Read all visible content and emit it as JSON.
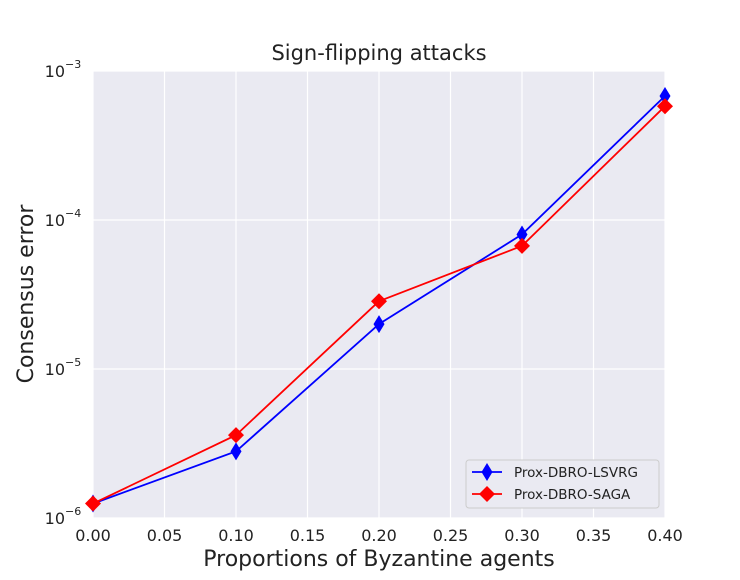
{
  "chart_data": {
    "type": "line",
    "title": "Sign-flipping attacks",
    "xlabel": "Proportions of Byzantine agents",
    "ylabel": "Consensus error",
    "x": [
      0.0,
      0.1,
      0.2,
      0.3,
      0.4
    ],
    "xlim": [
      0.0,
      0.4
    ],
    "xticks": [
      "0.00",
      "0.05",
      "0.10",
      "0.15",
      "0.20",
      "0.25",
      "0.30",
      "0.35",
      "0.40"
    ],
    "yscale": "log",
    "ylim": [
      1e-06,
      0.001
    ],
    "yticks": [
      {
        "base": "10",
        "exp": "−6"
      },
      {
        "base": "10",
        "exp": "−5"
      },
      {
        "base": "10",
        "exp": "−4"
      },
      {
        "base": "10",
        "exp": "−3"
      }
    ],
    "grid": true,
    "legend_position": "lower-right",
    "series": [
      {
        "name": "Prox-DBRO-LSVRG",
        "color": "#0000ff",
        "marker": "thin-diamond",
        "values": [
          1.25e-06,
          2.8e-06,
          2e-05,
          8e-05,
          0.00068
        ]
      },
      {
        "name": "Prox-DBRO-SAGA",
        "color": "#ff0000",
        "marker": "diamond",
        "values": [
          1.25e-06,
          3.6e-06,
          2.85e-05,
          6.7e-05,
          0.00058
        ]
      }
    ]
  }
}
